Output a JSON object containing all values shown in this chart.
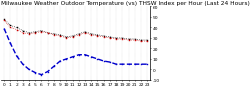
{
  "title": "Milwaukee Weather Outdoor Temperature (vs) THSW Index per Hour (Last 24 Hours)",
  "hours": [
    0,
    1,
    2,
    3,
    4,
    5,
    6,
    7,
    8,
    9,
    10,
    11,
    12,
    13,
    14,
    15,
    16,
    17,
    18,
    19,
    20,
    21,
    22,
    23
  ],
  "temp": [
    47,
    40,
    38,
    35,
    34,
    35,
    36,
    35,
    33,
    32,
    30,
    31,
    33,
    35,
    33,
    32,
    31,
    30,
    29,
    29,
    28,
    28,
    27,
    27
  ],
  "thsw": [
    39,
    25,
    13,
    5,
    0,
    -3,
    -5,
    -2,
    3,
    8,
    10,
    12,
    14,
    14,
    12,
    10,
    8,
    7,
    5,
    5,
    5,
    5,
    5,
    5
  ],
  "apparent": [
    48,
    42,
    40,
    37,
    35,
    36,
    37,
    35,
    34,
    33,
    31,
    32,
    34,
    36,
    34,
    33,
    32,
    31,
    30,
    30,
    29,
    29,
    28,
    28
  ],
  "temp_color": "#cc0000",
  "thsw_color": "#0000cc",
  "apparent_color": "#000000",
  "bg_color": "#ffffff",
  "ylim": [
    -10,
    60
  ],
  "yticks": [
    -10,
    0,
    10,
    20,
    30,
    40,
    50,
    60
  ],
  "grid_color": "#888888",
  "title_fontsize": 4.2,
  "tick_fontsize": 3.2
}
